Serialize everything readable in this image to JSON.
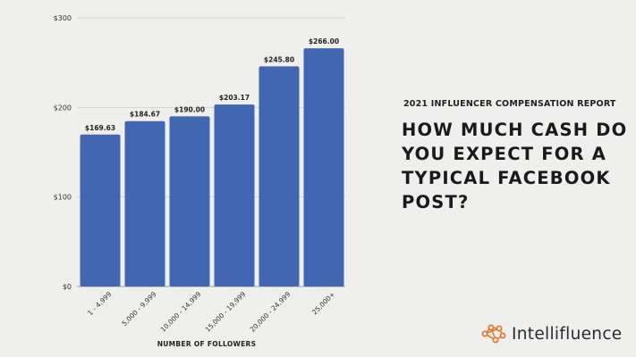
{
  "report_label": "2021 INFLUENCER COMPENSATION REPORT",
  "headline": "HOW MUCH CASH DO YOU EXPECT FOR A TYPICAL FACEBOOK POST?",
  "brand": {
    "name": "Intellifluence",
    "icon": "network-nodes-icon",
    "icon_color": "#e8772e"
  },
  "chart_data": {
    "type": "bar",
    "categories": [
      "1 - 4,999",
      "5,000 - 9,999",
      "10,000 - 14,999",
      "15,000 - 19,999",
      "20,000 - 24,999",
      "25,000+"
    ],
    "values": [
      169.63,
      184.67,
      190.0,
      203.17,
      245.8,
      266.0
    ],
    "data_labels": [
      "$169.63",
      "$184.67",
      "$190.00",
      "$203.17",
      "$245.80",
      "$266.00"
    ],
    "xlabel": "NUMBER OF FOLLOWERS",
    "ylabel": "",
    "ylim": [
      0,
      300
    ],
    "yticks": [
      {
        "value": 0,
        "label": "$0"
      },
      {
        "value": 100,
        "label": "$100"
      },
      {
        "value": 200,
        "label": "$200"
      },
      {
        "value": 300,
        "label": "$300"
      }
    ],
    "grid": true,
    "bar_color": "#4166b2"
  }
}
